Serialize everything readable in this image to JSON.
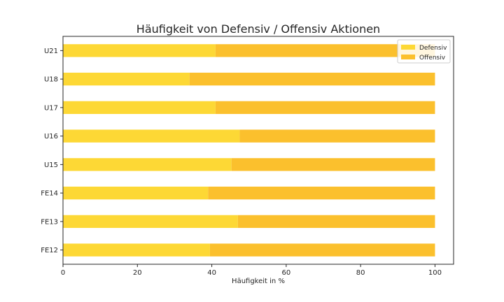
{
  "chart_data": {
    "type": "bar",
    "orientation": "horizontal",
    "stacked": true,
    "title": "Häufigkeit von Defensiv / Offensiv Aktionen",
    "xlabel": "Häufigkeit in %",
    "ylabel": "",
    "xlim": [
      0,
      105
    ],
    "xticks": [
      0,
      20,
      40,
      60,
      80,
      100
    ],
    "categories": [
      "U21",
      "U18",
      "U17",
      "U16",
      "U15",
      "FE14",
      "FE13",
      "FE12"
    ],
    "series": [
      {
        "name": "Defensiv",
        "color": "#fdd835",
        "values": [
          41,
          34,
          41,
          47.5,
          45.3,
          39,
          47,
          39.5
        ]
      },
      {
        "name": "Offensiv",
        "color": "#fbc02d",
        "values": [
          59,
          66,
          59,
          52.5,
          54.7,
          61,
          53,
          60.5
        ]
      }
    ],
    "grid": false,
    "legend_position": "top-right"
  }
}
